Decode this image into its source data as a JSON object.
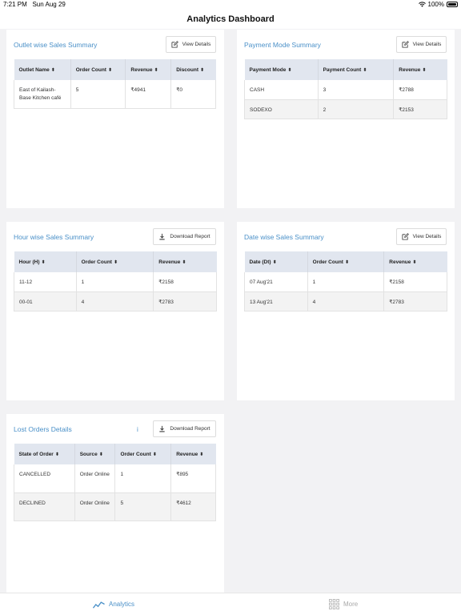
{
  "status_bar": {
    "time": "7:21 PM",
    "date": "Sun Aug 29",
    "battery": "100%"
  },
  "header": {
    "title": "Analytics Dashboard"
  },
  "outlet_summary": {
    "title": "Outlet wise Sales Summary",
    "button": "View Details",
    "columns": [
      "Outlet Name",
      "Order Count",
      "Revenue",
      "Discount"
    ],
    "rows": [
      {
        "outlet_name": "East of Kailash-Base Kitchen café",
        "order_count": "5",
        "revenue": "₹4941",
        "discount": "₹0"
      }
    ]
  },
  "payment_summary": {
    "title": "Payment Mode Summary",
    "button": "View Details",
    "columns": [
      "Payment Mode",
      "Payment Count",
      "Revenue"
    ],
    "rows": [
      {
        "mode": "CASH",
        "count": "3",
        "revenue": "₹2788"
      },
      {
        "mode": "SODEXO",
        "count": "2",
        "revenue": "₹2153"
      }
    ]
  },
  "hour_summary": {
    "title": "Hour wise Sales Summary",
    "button": "Download Report",
    "columns": [
      "Hour (H)",
      "Order Count",
      "Revenue"
    ],
    "rows": [
      {
        "hour": "11-12",
        "count": "1",
        "revenue": "₹2158"
      },
      {
        "hour": "00-01",
        "count": "4",
        "revenue": "₹2783"
      }
    ]
  },
  "date_summary": {
    "title": "Date wise Sales Summary",
    "button": "View Details",
    "columns": [
      "Date (Dt)",
      "Order Count",
      "Revenue"
    ],
    "rows": [
      {
        "date": "07 Aug'21",
        "count": "1",
        "revenue": "₹2158"
      },
      {
        "date": "13 Aug'21",
        "count": "4",
        "revenue": "₹2783"
      }
    ]
  },
  "lost_orders": {
    "title": "Lost Orders Details",
    "info_icon": "i",
    "button": "Download Report",
    "columns": [
      "State of Order",
      "Source",
      "Order Count",
      "Revenue"
    ],
    "rows": [
      {
        "state": "CANCELLED",
        "source": "Order Online",
        "count": "1",
        "revenue": "₹895"
      },
      {
        "state": "DECLINED",
        "source": "Order Online",
        "count": "5",
        "revenue": "₹4612"
      }
    ]
  },
  "tabs": [
    {
      "label": "Analytics",
      "icon": "analytics-icon",
      "active": true
    },
    {
      "label": "More",
      "icon": "grid-icon",
      "active": false
    }
  ],
  "colors": {
    "accent": "#4a90c8",
    "table_header": "#e1e6ef",
    "inactive_tab": "#a8a8a8"
  }
}
